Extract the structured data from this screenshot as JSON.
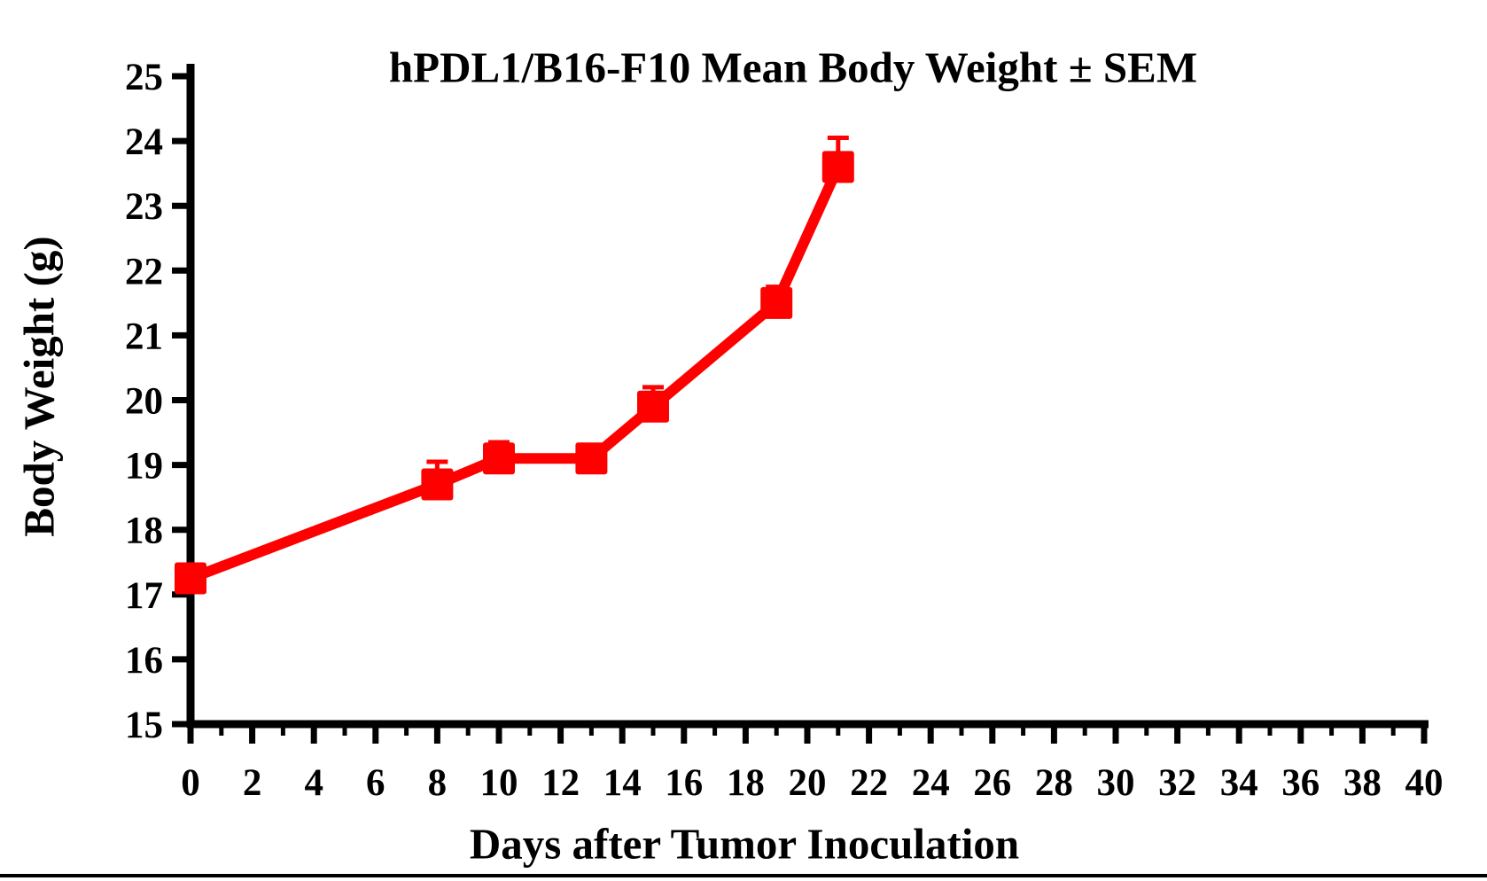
{
  "page": {
    "background_color": "#ffffff",
    "axis_color": "#000000",
    "series_color": "#ff0000"
  },
  "chart_data": {
    "type": "line",
    "title": "hPDL1/B16-F10 Mean Body Weight ± SEM",
    "xlabel": "Days after Tumor Inoculation",
    "ylabel": "Body Weight (g)",
    "xlim": [
      0,
      40
    ],
    "ylim": [
      15,
      25
    ],
    "x_major_tick_step": 2,
    "x_minor_tick_step": 1,
    "y_tick_step": 1,
    "grid": false,
    "legend_position": "none",
    "error_bar_direction": "up",
    "series": [
      {
        "name": "hPDL1/B16-F10 mean body weight",
        "marker": "square",
        "color": "#ff0000",
        "x": [
          0,
          8,
          10,
          13,
          15,
          19,
          21
        ],
        "y": [
          17.25,
          18.7,
          19.1,
          19.1,
          19.9,
          21.5,
          23.6
        ],
        "sem": [
          0,
          0.35,
          0.25,
          0.2,
          0.3,
          0.25,
          0.45
        ]
      }
    ]
  }
}
